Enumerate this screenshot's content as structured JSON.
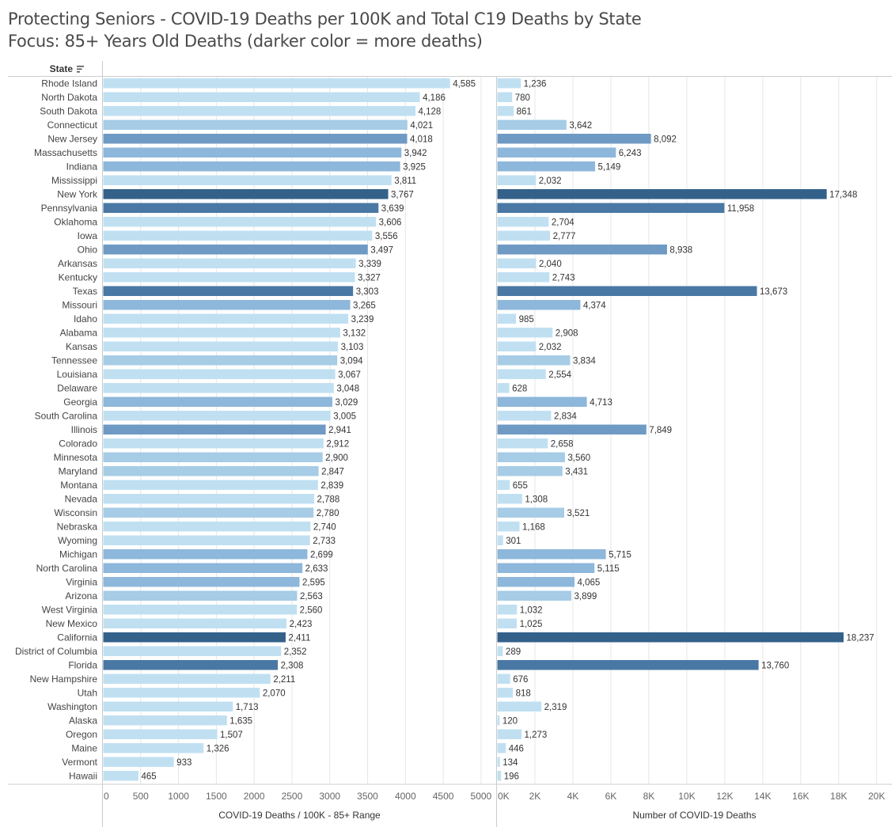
{
  "title": {
    "line1": "Protecting Seniors - COVID-19 Deaths per 100K and Total C19 Deaths by State",
    "line2": "Focus: 85+ Years Old Deaths (darker color = more deaths)"
  },
  "header": {
    "state_label": "State",
    "sort_icon": "sort-descending-icon"
  },
  "colors": {
    "scale": [
      "#c0e0f2",
      "#a6cce6",
      "#8db7db",
      "#6f9ac4",
      "#4a78a4",
      "#33618a"
    ],
    "gridline": "#e6e6e6",
    "axis": "#cccccc",
    "label_text": "#444444"
  },
  "chart_data": [
    {
      "type": "bar",
      "orientation": "horizontal",
      "xlabel": "COVID-19 Deaths / 100K - 85+ Range",
      "ylabel": "State",
      "xlim": [
        0,
        5200
      ],
      "ticks": [
        0,
        500,
        1000,
        1500,
        2000,
        2500,
        3000,
        3500,
        4000,
        4500,
        5000
      ],
      "tick_labels": [
        "0",
        "500",
        "1000",
        "1500",
        "2000",
        "2500",
        "3000",
        "3500",
        "4000",
        "4500",
        "5000"
      ],
      "categories": [
        "Rhode Island",
        "North Dakota",
        "South Dakota",
        "Connecticut",
        "New Jersey",
        "Massachusetts",
        "Indiana",
        "Mississippi",
        "New York",
        "Pennsylvania",
        "Oklahoma",
        "Iowa",
        "Ohio",
        "Arkansas",
        "Kentucky",
        "Texas",
        "Missouri",
        "Idaho",
        "Alabama",
        "Kansas",
        "Tennessee",
        "Louisiana",
        "Delaware",
        "Georgia",
        "South Carolina",
        "Illinois",
        "Colorado",
        "Minnesota",
        "Maryland",
        "Montana",
        "Nevada",
        "Wisconsin",
        "Nebraska",
        "Wyoming",
        "Michigan",
        "North Carolina",
        "Virginia",
        "Arizona",
        "West Virginia",
        "New Mexico",
        "California",
        "District of Columbia",
        "Florida",
        "New Hampshire",
        "Utah",
        "Washington",
        "Alaska",
        "Oregon",
        "Maine",
        "Vermont",
        "Hawaii"
      ],
      "values": [
        4585,
        4186,
        4128,
        4021,
        4018,
        3942,
        3925,
        3811,
        3767,
        3639,
        3606,
        3556,
        3497,
        3339,
        3327,
        3303,
        3265,
        3239,
        3132,
        3103,
        3094,
        3067,
        3048,
        3029,
        3005,
        2941,
        2912,
        2900,
        2847,
        2839,
        2788,
        2780,
        2740,
        2733,
        2699,
        2633,
        2595,
        2563,
        2560,
        2423,
        2411,
        2352,
        2308,
        2211,
        2070,
        1713,
        1635,
        1507,
        1326,
        933,
        465
      ],
      "value_labels": [
        "4,585",
        "4,186",
        "4,128",
        "4,021",
        "4,018",
        "3,942",
        "3,925",
        "3,811",
        "3,767",
        "3,639",
        "3,606",
        "3,556",
        "3,497",
        "3,339",
        "3,327",
        "3,303",
        "3,265",
        "3,239",
        "3,132",
        "3,103",
        "3,094",
        "3,067",
        "3,048",
        "3,029",
        "3,005",
        "2,941",
        "2,912",
        "2,900",
        "2,847",
        "2,839",
        "2,788",
        "2,780",
        "2,740",
        "2,733",
        "2,699",
        "2,633",
        "2,595",
        "2,563",
        "2,560",
        "2,423",
        "2,411",
        "2,352",
        "2,308",
        "2,211",
        "2,070",
        "1,713",
        "1,635",
        "1,507",
        "1,326",
        "933",
        "465"
      ]
    },
    {
      "type": "bar",
      "orientation": "horizontal",
      "xlabel": "Number of COVID-19 Deaths",
      "xlim": [
        0,
        20800
      ],
      "ticks": [
        0,
        2000,
        4000,
        6000,
        8000,
        10000,
        12000,
        14000,
        16000,
        18000,
        20000
      ],
      "tick_labels": [
        "0K",
        "2K",
        "4K",
        "6K",
        "8K",
        "10K",
        "12K",
        "14K",
        "16K",
        "18K",
        "20K"
      ],
      "values": [
        1236,
        780,
        861,
        3642,
        8092,
        6243,
        5149,
        2032,
        17348,
        11958,
        2704,
        2777,
        8938,
        2040,
        2743,
        13673,
        4374,
        985,
        2908,
        2032,
        3834,
        2554,
        628,
        4713,
        2834,
        7849,
        2658,
        3560,
        3431,
        655,
        1308,
        3521,
        1168,
        301,
        5715,
        5115,
        4065,
        3899,
        1032,
        1025,
        18237,
        289,
        13760,
        676,
        818,
        2319,
        120,
        1273,
        446,
        134,
        196
      ],
      "value_labels": [
        "1,236",
        "780",
        "861",
        "3,642",
        "8,092",
        "6,243",
        "5,149",
        "2,032",
        "17,348",
        "11,958",
        "2,704",
        "2,777",
        "8,938",
        "2,040",
        "2,743",
        "13,673",
        "4,374",
        "985",
        "2,908",
        "2,032",
        "3,834",
        "2,554",
        "628",
        "4,713",
        "2,834",
        "7,849",
        "2,658",
        "3,560",
        "3,431",
        "655",
        "1,308",
        "3,521",
        "1,168",
        "301",
        "5,715",
        "5,115",
        "4,065",
        "3,899",
        "1,032",
        "1,025",
        "18,237",
        "289",
        "13,760",
        "676",
        "818",
        "2,319",
        "120",
        "1,273",
        "446",
        "134",
        "196"
      ]
    }
  ]
}
